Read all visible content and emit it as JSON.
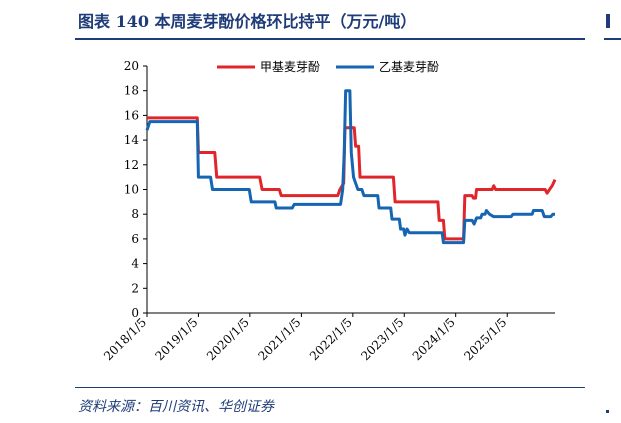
{
  "figure": {
    "title": "图表 140   本周麦芽酚价格环比持平（万元/吨）",
    "source": "资料来源：百川资讯、华创证券"
  },
  "colors": {
    "series_a": "#e0262a",
    "series_b": "#1565b3",
    "axis": "#000000",
    "title": "#1f3c78"
  },
  "chart_data": {
    "type": "line",
    "title": "",
    "xlabel": "",
    "ylabel": "",
    "ylim": [
      0,
      20
    ],
    "yticks": [
      0,
      2,
      4,
      6,
      8,
      10,
      12,
      14,
      16,
      18,
      20
    ],
    "xlim": [
      "2018-01-05",
      "2025-12-10"
    ],
    "xticks": [
      "2018/1/5",
      "2019/1/5",
      "2020/1/5",
      "2021/1/5",
      "2022/1/5",
      "2023/1/5",
      "2024/1/5",
      "2025/1/5"
    ],
    "xtick_dates": [
      "2018-01-05",
      "2019-01-05",
      "2020-01-05",
      "2021-01-05",
      "2022-01-05",
      "2023-01-05",
      "2024-01-05",
      "2025-01-05"
    ],
    "legend_position": "top",
    "grid": false,
    "series": [
      {
        "name": "甲基麦芽酚",
        "points": [
          [
            "2018-01-05",
            15.8
          ],
          [
            "2018-12-28",
            15.8
          ],
          [
            "2019-01-05",
            13.0
          ],
          [
            "2019-05-01",
            13.0
          ],
          [
            "2019-05-15",
            11.0
          ],
          [
            "2020-03-15",
            11.0
          ],
          [
            "2020-04-01",
            10.0
          ],
          [
            "2020-08-01",
            10.0
          ],
          [
            "2020-08-15",
            9.5
          ],
          [
            "2021-09-20",
            9.5
          ],
          [
            "2021-10-05",
            10.0
          ],
          [
            "2021-11-01",
            10.5
          ],
          [
            "2021-11-10",
            15.0
          ],
          [
            "2022-01-15",
            15.0
          ],
          [
            "2022-01-25",
            13.5
          ],
          [
            "2022-02-15",
            13.5
          ],
          [
            "2022-02-25",
            11.0
          ],
          [
            "2022-10-20",
            11.0
          ],
          [
            "2022-11-01",
            9.0
          ],
          [
            "2023-09-01",
            9.0
          ],
          [
            "2023-09-10",
            7.5
          ],
          [
            "2023-10-10",
            7.5
          ],
          [
            "2023-10-20",
            6.0
          ],
          [
            "2024-03-01",
            6.0
          ],
          [
            "2024-03-10",
            9.5
          ],
          [
            "2024-05-01",
            9.5
          ],
          [
            "2024-05-10",
            9.3
          ],
          [
            "2024-05-25",
            9.3
          ],
          [
            "2024-06-01",
            10.0
          ],
          [
            "2024-09-20",
            10.0
          ],
          [
            "2024-10-01",
            10.3
          ],
          [
            "2024-10-15",
            10.0
          ],
          [
            "2025-10-01",
            10.0
          ],
          [
            "2025-10-15",
            9.7
          ],
          [
            "2025-11-01",
            10.0
          ],
          [
            "2025-11-20",
            10.3
          ],
          [
            "2025-12-10",
            10.8
          ]
        ]
      },
      {
        "name": "乙基麦芽酚",
        "points": [
          [
            "2018-01-05",
            14.8
          ],
          [
            "2018-01-25",
            15.5
          ],
          [
            "2018-12-28",
            15.5
          ],
          [
            "2019-01-05",
            11.0
          ],
          [
            "2019-04-01",
            11.0
          ],
          [
            "2019-04-15",
            10.0
          ],
          [
            "2020-01-01",
            10.0
          ],
          [
            "2020-01-15",
            9.0
          ],
          [
            "2020-07-01",
            9.0
          ],
          [
            "2020-07-10",
            8.5
          ],
          [
            "2020-11-01",
            8.5
          ],
          [
            "2020-11-15",
            8.8
          ],
          [
            "2021-10-10",
            8.8
          ],
          [
            "2021-10-25",
            10.0
          ],
          [
            "2021-11-05",
            13.0
          ],
          [
            "2021-11-15",
            18.0
          ],
          [
            "2021-12-15",
            18.0
          ],
          [
            "2021-12-25",
            13.0
          ],
          [
            "2022-01-10",
            11.0
          ],
          [
            "2022-01-25",
            10.5
          ],
          [
            "2022-02-10",
            10.0
          ],
          [
            "2022-03-10",
            10.0
          ],
          [
            "2022-03-25",
            9.5
          ],
          [
            "2022-07-01",
            9.5
          ],
          [
            "2022-07-10",
            8.5
          ],
          [
            "2022-10-01",
            8.5
          ],
          [
            "2022-10-10",
            7.6
          ],
          [
            "2022-12-01",
            7.6
          ],
          [
            "2022-12-10",
            6.8
          ],
          [
            "2023-01-01",
            6.8
          ],
          [
            "2023-01-10",
            6.3
          ],
          [
            "2023-01-25",
            6.8
          ],
          [
            "2023-02-10",
            6.5
          ],
          [
            "2023-10-01",
            6.5
          ],
          [
            "2023-10-10",
            5.7
          ],
          [
            "2024-03-01",
            5.7
          ],
          [
            "2024-03-10",
            7.5
          ],
          [
            "2024-05-01",
            7.5
          ],
          [
            "2024-05-15",
            7.2
          ],
          [
            "2024-06-01",
            7.7
          ],
          [
            "2024-07-01",
            7.7
          ],
          [
            "2024-07-10",
            8.0
          ],
          [
            "2024-08-01",
            8.0
          ],
          [
            "2024-08-10",
            8.3
          ],
          [
            "2024-09-01",
            8.0
          ],
          [
            "2024-10-01",
            7.8
          ],
          [
            "2025-02-01",
            7.8
          ],
          [
            "2025-02-15",
            8.0
          ],
          [
            "2025-07-01",
            8.0
          ],
          [
            "2025-07-10",
            8.3
          ],
          [
            "2025-09-10",
            8.3
          ],
          [
            "2025-09-25",
            7.8
          ],
          [
            "2025-11-10",
            7.8
          ],
          [
            "2025-11-25",
            8.0
          ],
          [
            "2025-12-10",
            8.0
          ]
        ]
      }
    ]
  }
}
